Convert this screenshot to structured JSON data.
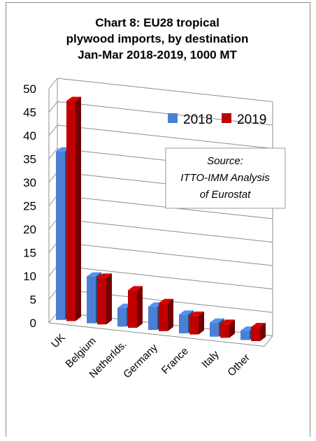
{
  "chart_data": {
    "type": "bar",
    "title": [
      "Chart 8: EU28 tropical",
      "plywood imports, by destination",
      "Jan-Mar 2018-2019, 1000 MT"
    ],
    "categories": [
      "UK",
      "Belgium",
      "Netherlds.",
      "Germany",
      "France",
      "Italy",
      "Other"
    ],
    "series": [
      {
        "name": "2018",
        "values": [
          36,
          10,
          4,
          5,
          4,
          3,
          2
        ],
        "color": "#4a7fd4"
      },
      {
        "name": "2019",
        "values": [
          47,
          10,
          8,
          6,
          4,
          3,
          3
        ],
        "color": "#c00000"
      }
    ],
    "ylim": [
      0,
      50
    ],
    "yticks": [
      "0",
      "5",
      "10",
      "15",
      "20",
      "25",
      "30",
      "35",
      "40",
      "45",
      "50"
    ],
    "grid": true,
    "legend_position": "top-right",
    "annotation": [
      "Source:",
      "ITTO-IMM Analysis",
      "of Eurostat"
    ]
  }
}
